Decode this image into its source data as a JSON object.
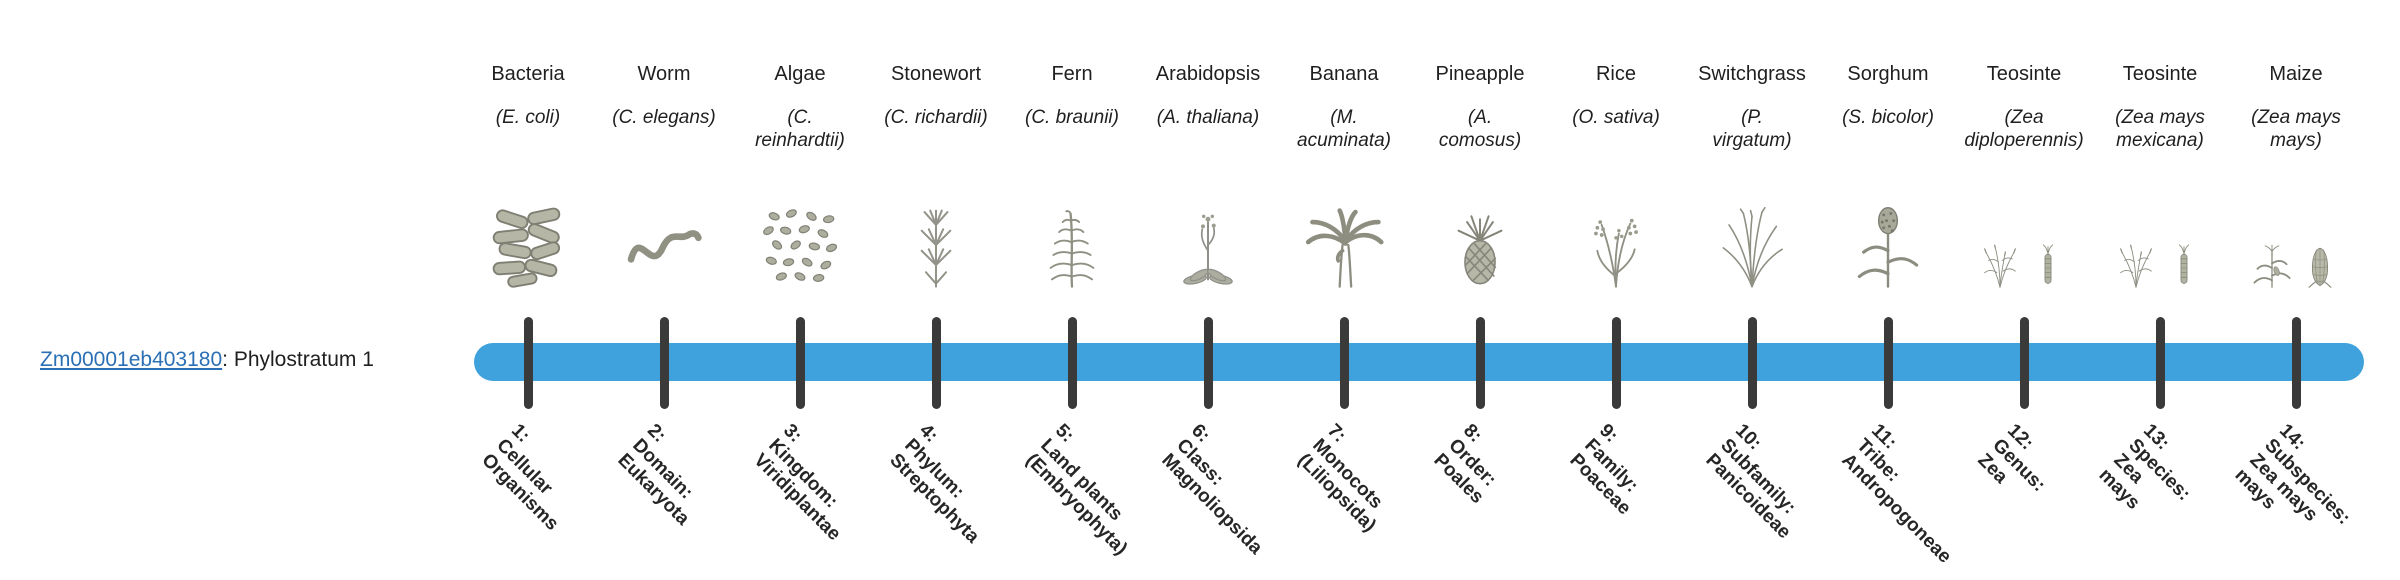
{
  "gene": {
    "id": "Zm00001eb403180",
    "label_suffix": ": Phylostratum 1",
    "link_color": "#2B6FB5"
  },
  "timeline": {
    "bar_color": "#3FA2DD",
    "tick_color": "#3A3A3A"
  },
  "species": [
    {
      "name": "Bacteria",
      "sci": "(E. coli)",
      "icons": [
        "bacteria-icon"
      ],
      "tick_label": "1:\nCellular\nOrganisms"
    },
    {
      "name": "Worm",
      "sci": "(C. elegans)",
      "icons": [
        "worm-icon"
      ],
      "tick_label": "2:\nDomain:\nEukaryota"
    },
    {
      "name": "Algae",
      "sci": "(C.\nreinhardtii)",
      "icons": [
        "algae-icon"
      ],
      "tick_label": "3:\nKingdom:\nViridiplantae"
    },
    {
      "name": "Stonewort",
      "sci": "(C. richardii)",
      "icons": [
        "stonewort-icon"
      ],
      "tick_label": "4:\nPhylum:\nStreptophyta"
    },
    {
      "name": "Fern",
      "sci": "(C. braunii)",
      "icons": [
        "fern-icon"
      ],
      "tick_label": "5:\nLand plants\n(Embryophyta)"
    },
    {
      "name": "Arabidopsis",
      "sci": "(A. thaliana)",
      "icons": [
        "arabidopsis-icon"
      ],
      "tick_label": "6:\nClass:\nMagnoliopsida"
    },
    {
      "name": "Banana",
      "sci": "(M.\nacuminata)",
      "icons": [
        "banana-icon"
      ],
      "tick_label": "7:\nMonocots\n(Liliopsida)"
    },
    {
      "name": "Pineapple",
      "sci": "(A.\ncomosus)",
      "icons": [
        "pineapple-icon"
      ],
      "tick_label": "8:\nOrder:\nPoales"
    },
    {
      "name": "Rice",
      "sci": "(O. sativa)",
      "icons": [
        "rice-icon"
      ],
      "tick_label": "9:\nFamily:\nPoaceae"
    },
    {
      "name": "Switchgrass",
      "sci": "(P.\nvirgatum)",
      "icons": [
        "switchgrass-icon"
      ],
      "tick_label": "10:\nSubfamily:\nPanicoideae"
    },
    {
      "name": "Sorghum",
      "sci": "(S. bicolor)",
      "icons": [
        "sorghum-icon"
      ],
      "tick_label": "11:\nTribe:\nAndropogoneae"
    },
    {
      "name": "Teosinte",
      "sci": "(Zea\ndiploperennis)",
      "icons": [
        "teosinte-plant-icon",
        "teosinte-spike-icon"
      ],
      "tick_label": "12:\nGenus:\nZea"
    },
    {
      "name": "Teosinte",
      "sci": "(Zea mays\nmexicana)",
      "icons": [
        "teosinte-plant-icon",
        "teosinte-spike-icon"
      ],
      "tick_label": "13:\nSpecies:\nZea\nmays"
    },
    {
      "name": "Maize",
      "sci": "(Zea mays\nmays)",
      "icons": [
        "maize-plant-icon",
        "maize-cob-icon"
      ],
      "tick_label": "14:\nSubspecies:\nZea mays\nmays"
    }
  ]
}
